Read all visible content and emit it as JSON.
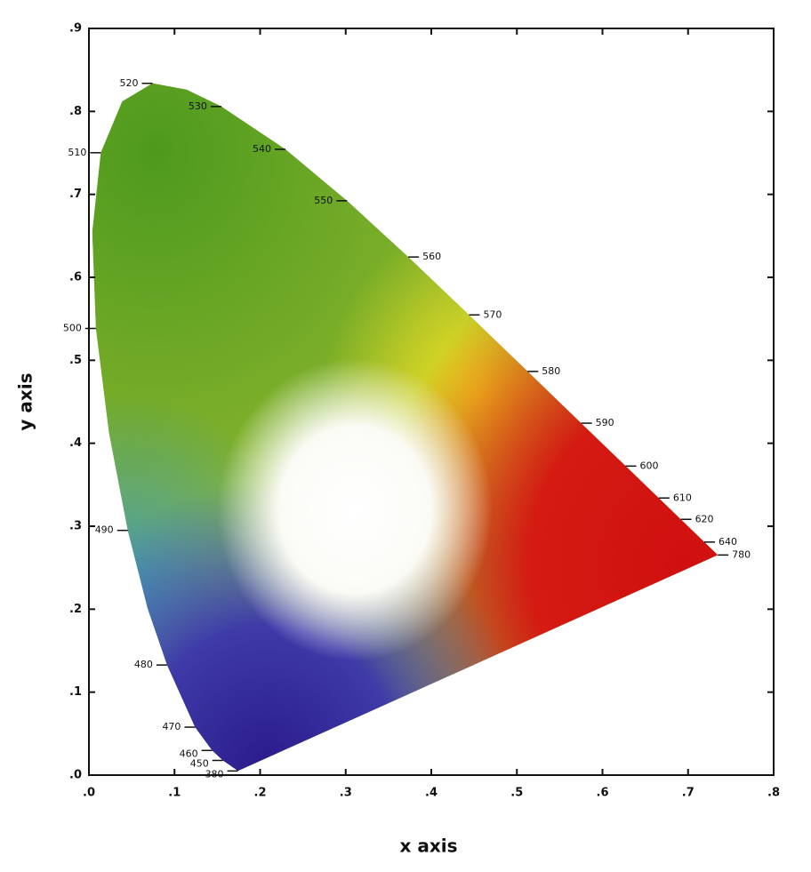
{
  "chart_data": {
    "type": "chromaticity",
    "x_label": "x  axis",
    "y_label": "y axis",
    "xlim": [
      0,
      0.8
    ],
    "ylim": [
      0,
      0.9
    ],
    "xticks": [
      {
        "value": 0,
        "label": ".0"
      },
      {
        "value": 0.1,
        "label": ".1"
      },
      {
        "value": 0.2,
        "label": ".2"
      },
      {
        "value": 0.3,
        "label": ".3"
      },
      {
        "value": 0.4,
        "label": ".4"
      },
      {
        "value": 0.5,
        "label": ".5"
      },
      {
        "value": 0.6,
        "label": ".6"
      },
      {
        "value": 0.7,
        "label": ".7"
      },
      {
        "value": 0.8,
        "label": ".8"
      }
    ],
    "yticks": [
      {
        "value": 0,
        "label": ".0"
      },
      {
        "value": 0.1,
        "label": ".1"
      },
      {
        "value": 0.2,
        "label": ".2"
      },
      {
        "value": 0.3,
        "label": ".3"
      },
      {
        "value": 0.4,
        "label": ".4"
      },
      {
        "value": 0.5,
        "label": ".5"
      },
      {
        "value": 0.6,
        "label": ".6"
      },
      {
        "value": 0.7,
        "label": ".7"
      },
      {
        "value": 0.8,
        "label": ".8"
      },
      {
        "value": 0.9,
        "label": ".9"
      }
    ],
    "x": [
      0.1741,
      0.1566,
      0.144,
      0.1241,
      0.0913,
      0.0687,
      0.0454,
      0.0235,
      0.0082,
      0.0039,
      0.0139,
      0.0389,
      0.0743,
      0.1142,
      0.1547,
      0.2296,
      0.3016,
      0.3731,
      0.4441,
      0.5125,
      0.5752,
      0.627,
      0.6658,
      0.6915,
      0.719,
      0.7347
    ],
    "values": [
      0.005,
      0.0177,
      0.0297,
      0.0578,
      0.1327,
      0.2007,
      0.295,
      0.4127,
      0.5384,
      0.6548,
      0.7502,
      0.812,
      0.8338,
      0.8262,
      0.8059,
      0.7543,
      0.6923,
      0.6245,
      0.5547,
      0.4866,
      0.4242,
      0.3725,
      0.334,
      0.3083,
      0.2809,
      0.2653
    ],
    "point_labels": [
      "380",
      "450",
      "460",
      "470",
      "480",
      null,
      "490",
      null,
      "500",
      null,
      "510",
      null,
      "520",
      null,
      "530",
      "540",
      "550",
      "560",
      "570",
      "580",
      "590",
      "600",
      "610",
      "620",
      "640",
      "780"
    ]
  }
}
